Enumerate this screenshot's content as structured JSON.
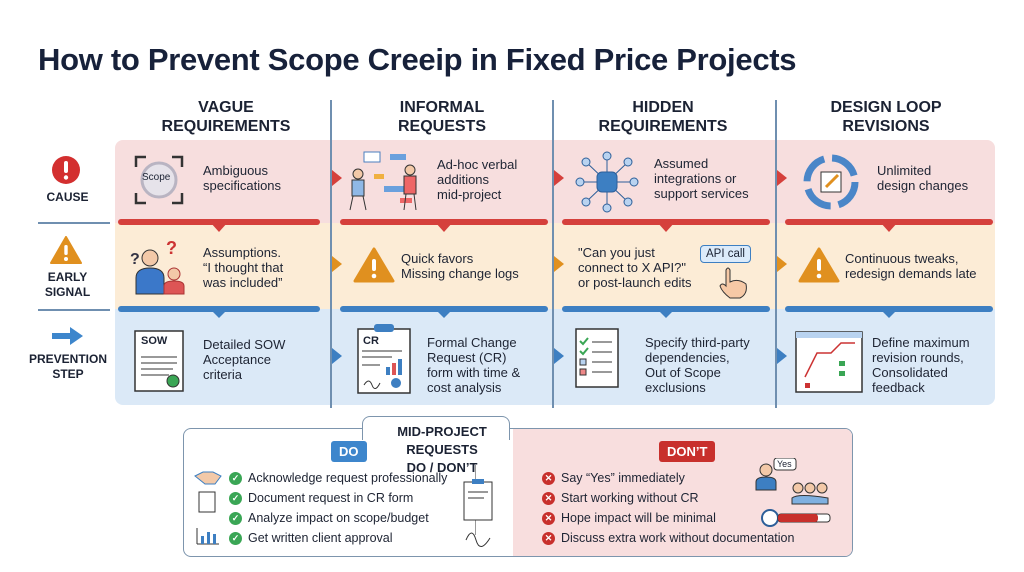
{
  "title": "How to Prevent Scope Creeip in Fixed Price Projects",
  "row_labels": {
    "cause": "CAUSE",
    "signal_1": "EARLY",
    "signal_2": "SIGNAL",
    "prevention_1": "PREVENTION",
    "prevention_2": "STEP"
  },
  "columns": [
    {
      "header_1": "VAGUE",
      "header_2": "REQUIREMENTS",
      "icon_label": "Scope",
      "cause": [
        "Ambiguous",
        "specifications"
      ],
      "signal": [
        "Assumptions.",
        "“I thought that",
        "was included”"
      ],
      "prevention": [
        "Detailed SOW",
        "Acceptance",
        "criteria"
      ],
      "doc_label": "SOW"
    },
    {
      "header_1": "INFORMAL",
      "header_2": "REQUESTS",
      "cause": [
        "Ad-hoc verbal",
        "additions",
        "mid-project"
      ],
      "signal": [
        "Quick favors",
        "Missing change logs"
      ],
      "prevention": [
        "Formal Change",
        "Request (CR)",
        "form with time &",
        "cost analysis"
      ],
      "doc_label": "CR"
    },
    {
      "header_1": "HIDDEN",
      "header_2": "REQUIREMENTS",
      "cause": [
        "Assumed",
        "integrations or",
        "support services"
      ],
      "signal": [
        "\"Can you just",
        "connect to X API?\"",
        "or post-launch edits"
      ],
      "prevention": [
        "Specify third-party",
        "dependencies,",
        "Out of Scope",
        "exclusions"
      ],
      "api_label": "API call"
    },
    {
      "header_1": "DESIGN LOOP",
      "header_2": "REVISIONS",
      "cause": [
        "Unlimited",
        "design changes"
      ],
      "signal": [
        "Continuous tweaks,",
        "redesign demands late"
      ],
      "prevention": [
        "Define maximum",
        "revision rounds,",
        "Consolidated",
        "feedback"
      ]
    }
  ],
  "dodont": {
    "title_1": "MID-PROJECT REQUESTS",
    "title_2": "DO / DON’T",
    "do_label": "DO",
    "dont_label": "DON’T",
    "do": [
      "Acknowledge request professionally",
      "Document request in CR form",
      "Analyze impact on scope/budget",
      "Get written client approval"
    ],
    "dont": [
      "Say “Yes” immediately",
      "Start working without CR",
      "Hope impact will be minimal",
      "Discuss extra work without documentation"
    ],
    "yes_bubble": "Yes"
  },
  "colors": {
    "red": "#d5403c",
    "orange": "#e0901f",
    "blue": "#3d7fc2",
    "green": "#3aa655"
  }
}
